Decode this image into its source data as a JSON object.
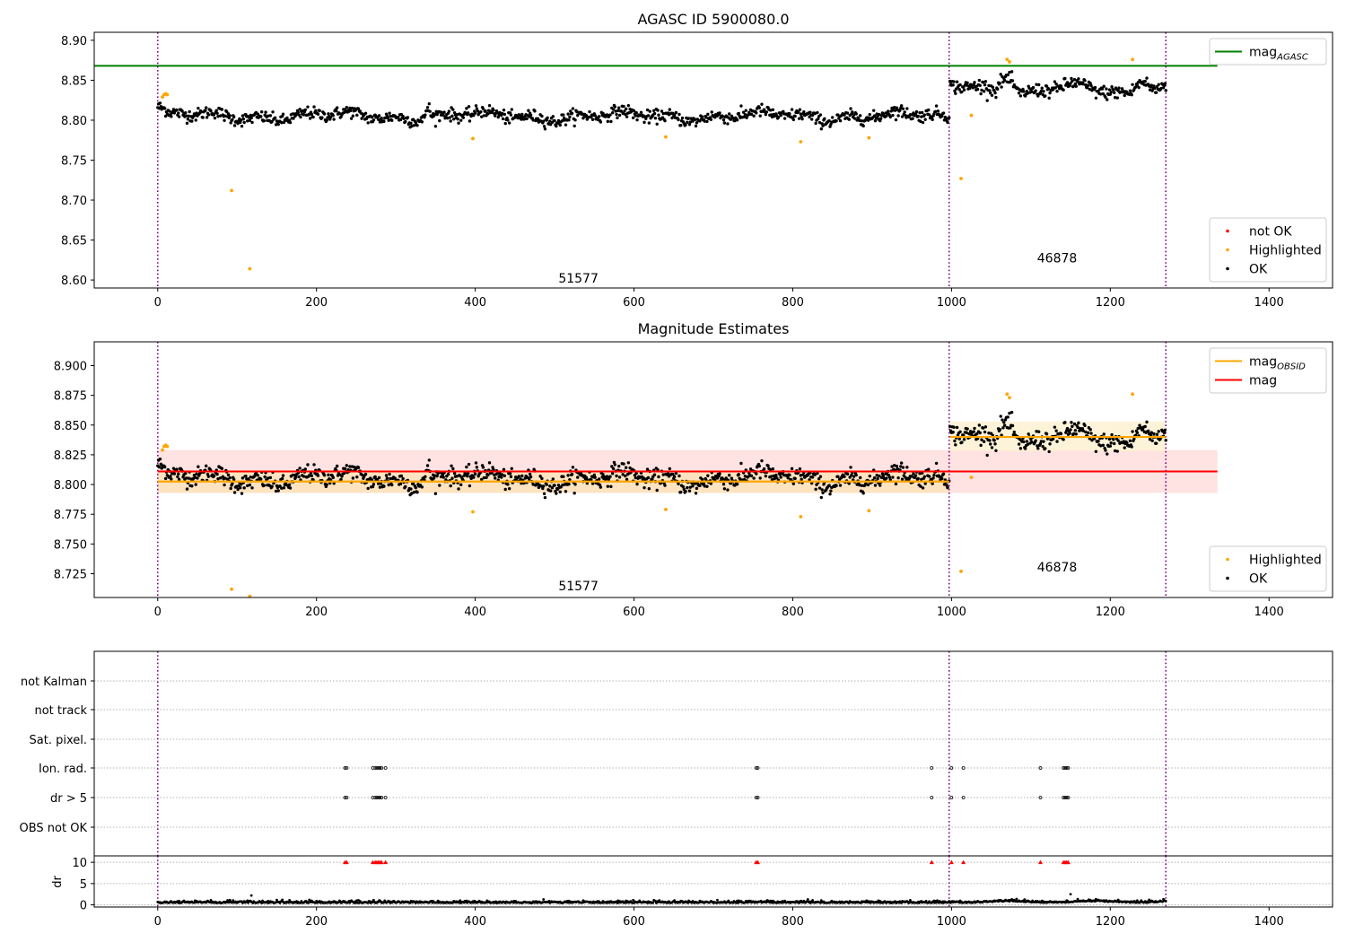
{
  "figure": {
    "background": "#ffffff"
  },
  "chart_data": [
    {
      "id": "p1",
      "type": "scatter",
      "title": "AGASC ID 5900080.0",
      "xlim": [
        -80,
        1480
      ],
      "ylim": [
        8.59,
        8.91
      ],
      "xticks": [
        0,
        200,
        400,
        600,
        800,
        1000,
        1200,
        1400
      ],
      "xtick_labels": [
        "0",
        "200",
        "400",
        "600",
        "800",
        "1000",
        "1200",
        "1400"
      ],
      "yticks": [
        8.6,
        8.65,
        8.7,
        8.75,
        8.8,
        8.85,
        8.9
      ],
      "ytick_labels": [
        "8.60",
        "8.65",
        "8.70",
        "8.75",
        "8.80",
        "8.85",
        "8.90"
      ],
      "grid": false,
      "vlines": [
        0,
        997,
        1270
      ],
      "vline_color": "#800080",
      "hlines": [
        {
          "name": "mag",
          "subscript": "AGASC",
          "y": 8.868,
          "x0": -80,
          "x1": 1335,
          "color": "#008000"
        }
      ],
      "segments": [
        {
          "obsid": "51577",
          "x0": 0,
          "x1": 997,
          "base": 8.805,
          "noise": 0.0065,
          "wave": [
            0.004,
            0.035
          ],
          "label_x": 530,
          "label_y": 8.597
        },
        {
          "obsid": "46878",
          "x0": 998,
          "x1": 1270,
          "base": 8.838,
          "noise": 0.007,
          "wave": [
            0.006,
            0.045
          ],
          "label_x": 1133,
          "label_y": 8.622
        }
      ],
      "bumps": [
        {
          "x0": 1055,
          "x1": 1085,
          "dy": 0.022
        },
        {
          "x0": 1225,
          "x1": 1255,
          "dy": 0.016
        },
        {
          "x0": 335,
          "x1": 345,
          "dy": 0.014
        }
      ],
      "highlighted": [
        {
          "x": 6,
          "y": 8.829
        },
        {
          "x": 8,
          "y": 8.832
        },
        {
          "x": 10,
          "y": 8.833
        },
        {
          "x": 12,
          "y": 8.832
        },
        {
          "x": 93,
          "y": 8.712
        },
        {
          "x": 116,
          "y": 8.614
        },
        {
          "x": 397,
          "y": 8.777
        },
        {
          "x": 640,
          "y": 8.779
        },
        {
          "x": 810,
          "y": 8.773
        },
        {
          "x": 896,
          "y": 8.778
        },
        {
          "x": 1012,
          "y": 8.727
        },
        {
          "x": 1025,
          "y": 8.806
        },
        {
          "x": 1070,
          "y": 8.876
        },
        {
          "x": 1073,
          "y": 8.873
        },
        {
          "x": 1228,
          "y": 8.876
        }
      ],
      "legends": [
        {
          "position": "upper-right",
          "items": [
            {
              "kind": "line",
              "color": "#008000",
              "label": "mag",
              "subscript": "AGASC"
            }
          ]
        },
        {
          "position": "lower-right",
          "items": [
            {
              "kind": "dot",
              "color": "#ff0000",
              "label": "not OK"
            },
            {
              "kind": "dot",
              "color": "#ffa500",
              "label": "Highlighted"
            },
            {
              "kind": "dot",
              "color": "#000000",
              "label": "OK"
            }
          ]
        }
      ]
    },
    {
      "id": "p2",
      "type": "scatter",
      "title": "Magnitude Estimates",
      "xlim": [
        -80,
        1480
      ],
      "ylim": [
        8.705,
        8.92
      ],
      "xticks": [
        0,
        200,
        400,
        600,
        800,
        1000,
        1200,
        1400
      ],
      "xtick_labels": [
        "0",
        "200",
        "400",
        "600",
        "800",
        "1000",
        "1200",
        "1400"
      ],
      "yticks": [
        8.725,
        8.75,
        8.775,
        8.8,
        8.825,
        8.85,
        8.875,
        8.9
      ],
      "ytick_labels": [
        "8.725",
        "8.750",
        "8.775",
        "8.800",
        "8.825",
        "8.850",
        "8.875",
        "8.900"
      ],
      "grid": false,
      "vlines": [
        0,
        997,
        1270
      ],
      "vline_color": "#800080",
      "hlines": [
        {
          "name": "mag",
          "y": 8.811,
          "x0": 0,
          "x1": 1335,
          "color": "#ff0000",
          "band": [
            8.793,
            8.829
          ],
          "band_color": "#ffd6d6"
        }
      ],
      "segment_lines": [
        {
          "name": "mag",
          "subscript": "OBSID",
          "x0": 0,
          "x1": 997,
          "y": 8.8025,
          "band": [
            8.793,
            8.812
          ],
          "color": "#ffa500",
          "band_color": "#fde3b8"
        },
        {
          "name": "mag",
          "subscript": "OBSID",
          "x0": 998,
          "x1": 1270,
          "y": 8.84,
          "band": [
            8.828,
            8.853
          ],
          "color": "#ffa500",
          "band_color": "#fdf0d0"
        }
      ],
      "annotations": [
        {
          "text": "51577",
          "x": 530,
          "y": 8.711
        },
        {
          "text": "46878",
          "x": 1133,
          "y": 8.727
        }
      ],
      "legends": [
        {
          "position": "upper-right",
          "items": [
            {
              "kind": "line",
              "color": "#ffa500",
              "label": "mag",
              "subscript": "OBSID"
            },
            {
              "kind": "line",
              "color": "#ff0000",
              "label": "mag"
            }
          ]
        },
        {
          "position": "lower-right",
          "items": [
            {
              "kind": "dot",
              "color": "#ffa500",
              "label": "Highlighted"
            },
            {
              "kind": "dot",
              "color": "#000000",
              "label": "OK"
            }
          ]
        }
      ]
    },
    {
      "id": "p3",
      "type": "scatter",
      "title": "",
      "xlim": [
        -80,
        1480
      ],
      "vlines": [
        0,
        997,
        1270
      ],
      "vline_color": "#800080",
      "flag_rows": [
        "not Kalman",
        "not track",
        "Sat. pixel.",
        "Ion. rad.",
        "dr > 5",
        "OBS not OK"
      ],
      "flag_points": {
        "Ion. rad.": [
          236,
          238,
          271,
          274,
          276,
          278,
          280,
          282,
          287,
          754,
          756,
          975,
          1000,
          1015,
          1112,
          1141,
          1143,
          1145,
          1147
        ],
        "dr > 5": [
          236,
          238,
          271,
          274,
          276,
          278,
          280,
          282,
          287,
          754,
          756,
          975,
          1000,
          1015,
          1112,
          1141,
          1143,
          1145,
          1147
        ]
      }
    },
    {
      "id": "p4",
      "type": "scatter",
      "title": "",
      "ylabel": "dr",
      "xlim": [
        -80,
        1480
      ],
      "ylim": [
        -0.5,
        11.5
      ],
      "xticks": [
        0,
        200,
        400,
        600,
        800,
        1000,
        1200,
        1400
      ],
      "xtick_labels": [
        "0",
        "200",
        "400",
        "600",
        "800",
        "1000",
        "1200",
        "1400"
      ],
      "yticks": [
        0,
        5,
        10
      ],
      "ytick_labels": [
        "0",
        "5",
        "10"
      ],
      "grid": true,
      "vlines": [
        0,
        997,
        1270
      ],
      "vline_color": "#800080",
      "clipped_markers_y": 10,
      "clipped_markers_x": [
        236,
        238,
        271,
        274,
        276,
        278,
        280,
        282,
        287,
        754,
        756,
        975,
        1000,
        1015,
        1112,
        1141,
        1143,
        1145,
        1147
      ],
      "outliers": [
        {
          "x": 118,
          "y": 2.2
        },
        {
          "x": 1150,
          "y": 2.5
        }
      ]
    }
  ]
}
